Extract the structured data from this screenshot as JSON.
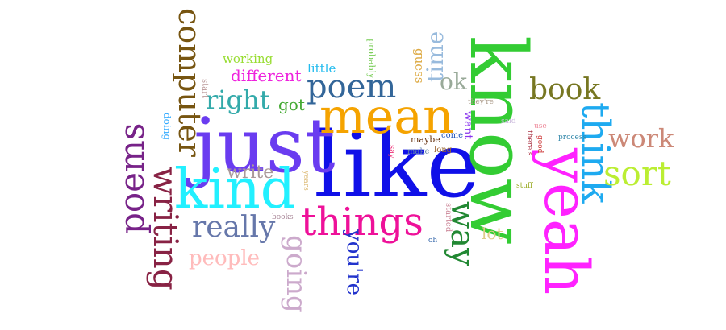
{
  "words": [
    {
      "text": "like",
      "color": "#1010e8",
      "rot": 0
    },
    {
      "text": "know",
      "color": "#33cc33",
      "rot": 90
    },
    {
      "text": "just",
      "color": "#6a3cf0",
      "rot": 0
    },
    {
      "text": "mean",
      "color": "#f5a300",
      "rot": 0
    },
    {
      "text": "kind",
      "color": "#22f0ff",
      "rot": 0
    },
    {
      "text": "yeah",
      "color": "#ff22ff",
      "rot": 90
    },
    {
      "text": "things",
      "color": "#ee1199",
      "rot": 0
    },
    {
      "text": "think",
      "color": "#1eaaf0",
      "rot": 90
    },
    {
      "text": "poem",
      "color": "#336699",
      "rot": 0
    },
    {
      "text": "writing",
      "color": "#882244",
      "rot": 90
    },
    {
      "text": "poems",
      "color": "#772288",
      "rot": -90
    },
    {
      "text": "computer",
      "color": "#775511",
      "rot": 90
    },
    {
      "text": "sort",
      "color": "#bbee33",
      "rot": 0
    },
    {
      "text": "book",
      "color": "#777722",
      "rot": 0
    },
    {
      "text": "work",
      "color": "#cc8877",
      "rot": 0
    },
    {
      "text": "really",
      "color": "#6677aa",
      "rot": 0
    },
    {
      "text": "way",
      "color": "#228833",
      "rot": 90
    },
    {
      "text": "right",
      "color": "#33aaaa",
      "rot": 0
    },
    {
      "text": "going",
      "color": "#ccaacc",
      "rot": 90
    },
    {
      "text": "people",
      "color": "#ffbbbb",
      "rot": 0
    },
    {
      "text": "time",
      "color": "#99bbdd",
      "rot": -90
    },
    {
      "text": "write",
      "color": "#aa9999",
      "rot": 0
    },
    {
      "text": "you're",
      "color": "#2233cc",
      "rot": 90
    },
    {
      "text": "ok",
      "color": "#99aa99",
      "rot": 0
    },
    {
      "text": "got",
      "color": "#44aa33",
      "rot": 0
    },
    {
      "text": "different",
      "color": "#ee22dd",
      "rot": 0
    },
    {
      "text": "lot",
      "color": "#ddcc88",
      "rot": 0
    },
    {
      "text": "working",
      "color": "#99dd33",
      "rot": 0
    },
    {
      "text": "little",
      "color": "#22bbee",
      "rot": 0
    },
    {
      "text": "guess",
      "color": "#ddaa44",
      "rot": 90
    },
    {
      "text": "want",
      "color": "#8833ee",
      "rot": 90
    },
    {
      "text": "probably",
      "color": "#77cc55",
      "rot": 90
    },
    {
      "text": "doing",
      "color": "#33aaff",
      "rot": 90
    },
    {
      "text": "start",
      "color": "#bb9999",
      "rot": 90
    },
    {
      "text": "maybe",
      "color": "#663311",
      "rot": 0
    },
    {
      "text": "come",
      "color": "#2255bb",
      "rot": 0
    },
    {
      "text": "make",
      "color": "#6688aa",
      "rot": 0
    },
    {
      "text": "long",
      "color": "#996633",
      "rot": 0
    },
    {
      "text": "say",
      "color": "#ee3377",
      "rot": 90
    },
    {
      "text": "started",
      "color": "#cc8899",
      "rot": 90
    },
    {
      "text": "years",
      "color": "#ddbb77",
      "rot": 90
    },
    {
      "text": "books",
      "color": "#aa8899",
      "rot": 0
    },
    {
      "text": "oh",
      "color": "#3366aa",
      "rot": 0
    },
    {
      "text": "stuff",
      "color": "#99aa22",
      "rot": 0
    },
    {
      "text": "they're",
      "color": "#aa9988",
      "rot": 0
    },
    {
      "text": "said",
      "color": "#ccbbdd",
      "rot": 0
    },
    {
      "text": "use",
      "color": "#ee8899",
      "rot": 0
    },
    {
      "text": "there's",
      "color": "#aa3344",
      "rot": 90
    },
    {
      "text": "good",
      "color": "#cc3333",
      "rot": 90
    },
    {
      "text": "process",
      "color": "#3388aa",
      "rot": 0
    }
  ]
}
